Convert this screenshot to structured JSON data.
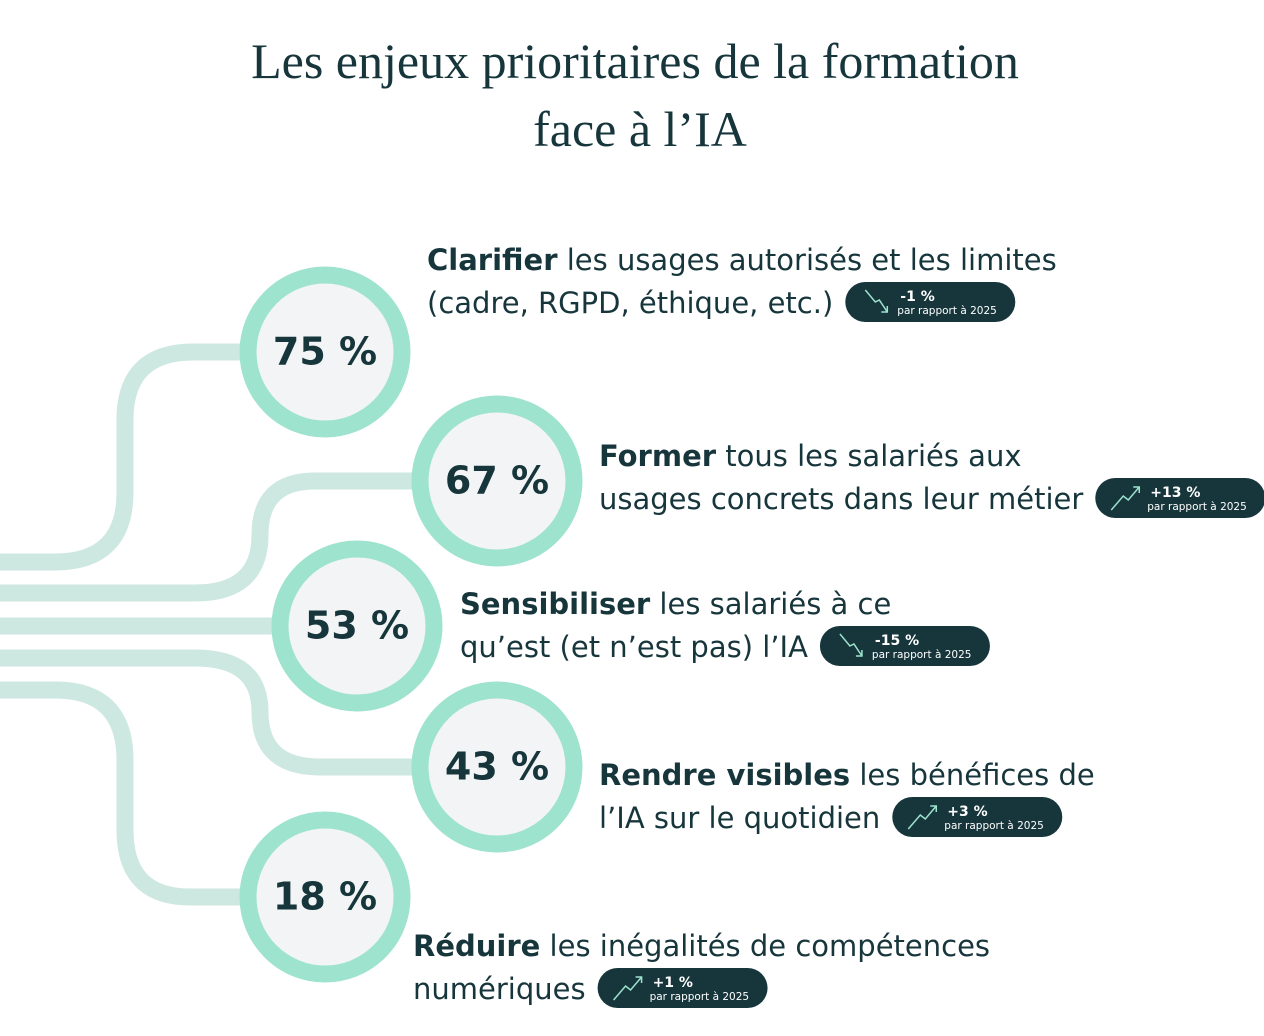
{
  "title": {
    "lines": [
      "Les enjeux prioritaires de la formation",
      "face à l’IA"
    ]
  },
  "items": [
    {
      "percent": "75 %",
      "bold": "Clarifier",
      "line1": " les usages autorisés et les limites",
      "line2": "(cadre, RGPD, éthique, etc.)",
      "change": "-1 %",
      "change_note": "par rapport à 2025"
    },
    {
      "percent": "67 %",
      "bold": "Former",
      "line1": " tous les salariés aux",
      "line2": "usages concrets dans leur métier",
      "change": "+13 %",
      "change_note": "par rapport à 2025"
    },
    {
      "percent": "53 %",
      "bold": "Sensibiliser",
      "line1": " les salariés à ce",
      "line2": "qu’est (et n’est pas) l’IA",
      "change": "-15 %",
      "change_note": "par rapport à 2025"
    },
    {
      "percent": "43 %",
      "bold": "Rendre visibles",
      "line1": " les bénéfices de",
      "line2": "l’IA sur le quotidien",
      "change": "+3 %",
      "change_note": "par rapport à 2025"
    },
    {
      "percent": "18 %",
      "bold": "Réduire",
      "line1": " les inégalités de compétences",
      "line2": "numériques",
      "change": "+1 %",
      "change_note": "par rapport à 2025"
    }
  ]
}
